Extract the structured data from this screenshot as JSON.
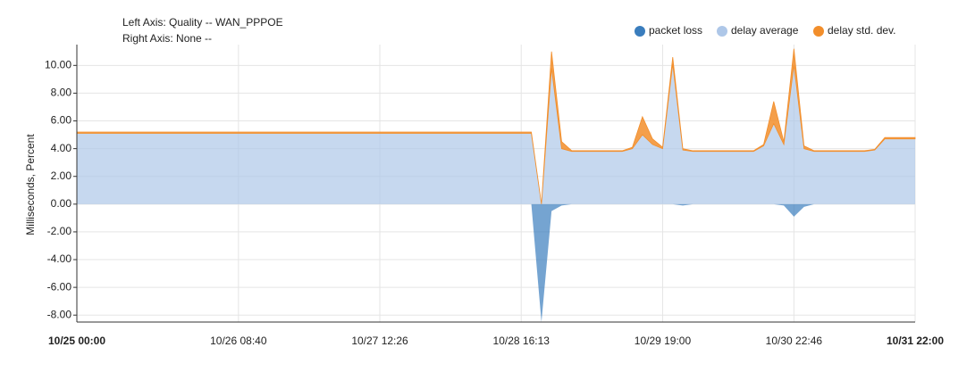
{
  "chart_data": {
    "type": "area",
    "header": [
      "Left Axis: Quality -- WAN_PPPOE",
      "Right Axis: None --"
    ],
    "ylabel": "Milliseconds, Percent",
    "categories": [
      "10/25 00:00",
      null,
      null,
      null,
      null,
      null,
      null,
      null,
      null,
      null,
      null,
      null,
      null,
      null,
      null,
      null,
      "10/26 08:40",
      null,
      null,
      null,
      null,
      null,
      null,
      null,
      null,
      null,
      null,
      null,
      null,
      null,
      "10/27 12:26",
      null,
      null,
      null,
      null,
      null,
      null,
      null,
      null,
      null,
      null,
      null,
      null,
      null,
      "10/28 16:13",
      null,
      null,
      null,
      null,
      null,
      null,
      null,
      null,
      null,
      null,
      null,
      null,
      null,
      "10/29 19:00",
      null,
      null,
      null,
      null,
      null,
      null,
      null,
      null,
      null,
      null,
      null,
      null,
      "10/30 22:46",
      null,
      null,
      null,
      null,
      null,
      null,
      null,
      null,
      null,
      null,
      null,
      "10/31 22:00"
    ],
    "series": [
      {
        "name": "packet loss",
        "color": "#3a7dbd",
        "values": [
          0,
          0,
          0,
          0,
          0,
          0,
          0,
          0,
          0,
          0,
          0,
          0,
          0,
          0,
          0,
          0,
          0,
          0,
          0,
          0,
          0,
          0,
          0,
          0,
          0,
          0,
          0,
          0,
          0,
          0,
          0,
          0,
          0,
          0,
          0,
          0,
          0,
          0,
          0,
          0,
          0,
          0,
          0,
          0,
          0,
          0,
          -8.5,
          -0.5,
          -0.1,
          0,
          0,
          0,
          0,
          0,
          0,
          0,
          0,
          0,
          0,
          0,
          -0.1,
          0,
          0,
          0,
          0,
          0,
          0,
          0,
          0,
          0,
          -0.1,
          -0.9,
          -0.2,
          0,
          0,
          0,
          0,
          0,
          0,
          0,
          0,
          0,
          0,
          0
        ]
      },
      {
        "name": "delay average",
        "color": "#aec7e8",
        "values": [
          5.1,
          5.1,
          5.1,
          5.1,
          5.1,
          5.1,
          5.1,
          5.1,
          5.1,
          5.1,
          5.1,
          5.1,
          5.1,
          5.1,
          5.1,
          5.1,
          5.1,
          5.1,
          5.1,
          5.1,
          5.1,
          5.1,
          5.1,
          5.1,
          5.1,
          5.1,
          5.1,
          5.1,
          5.1,
          5.1,
          5.1,
          5.1,
          5.1,
          5.1,
          5.1,
          5.1,
          5.1,
          5.1,
          5.1,
          5.1,
          5.1,
          5.1,
          5.1,
          5.1,
          5.1,
          5.1,
          0,
          9.8,
          4.0,
          3.8,
          3.8,
          3.8,
          3.8,
          3.8,
          3.8,
          4.0,
          5.0,
          4.3,
          4.0,
          10.1,
          3.9,
          3.8,
          3.8,
          3.8,
          3.8,
          3.8,
          3.8,
          3.8,
          4.2,
          5.8,
          4.3,
          10.0,
          4.0,
          3.8,
          3.8,
          3.8,
          3.8,
          3.8,
          3.8,
          3.9,
          4.7,
          4.7,
          4.7,
          4.7
        ]
      },
      {
        "name": "delay std. dev.",
        "color": "#f28e2b",
        "values": [
          0.1,
          0.1,
          0.1,
          0.1,
          0.1,
          0.1,
          0.1,
          0.1,
          0.1,
          0.1,
          0.1,
          0.1,
          0.1,
          0.1,
          0.1,
          0.1,
          0.1,
          0.1,
          0.1,
          0.1,
          0.1,
          0.1,
          0.1,
          0.1,
          0.1,
          0.1,
          0.1,
          0.1,
          0.1,
          0.1,
          0.1,
          0.1,
          0.1,
          0.1,
          0.1,
          0.1,
          0.1,
          0.1,
          0.1,
          0.1,
          0.1,
          0.1,
          0.1,
          0.1,
          0.1,
          0.1,
          0,
          1.2,
          0.5,
          0.05,
          0.05,
          0.05,
          0.05,
          0.05,
          0.05,
          0.1,
          1.3,
          0.4,
          0.1,
          0.5,
          0.1,
          0.05,
          0.05,
          0.05,
          0.05,
          0.05,
          0.05,
          0.05,
          0.1,
          1.6,
          0.2,
          1.2,
          0.2,
          0.05,
          0.05,
          0.05,
          0.05,
          0.05,
          0.05,
          0.05,
          0.1,
          0.1,
          0.1,
          0.1
        ]
      }
    ],
    "ylim": [
      -8.5,
      11.5
    ],
    "yticks": [
      {
        "value": 10,
        "label": "10.00"
      },
      {
        "value": 8,
        "label": "8.00"
      },
      {
        "value": 6,
        "label": "6.00"
      },
      {
        "value": 4,
        "label": "4.00"
      },
      {
        "value": 2,
        "label": "2.00"
      },
      {
        "value": 0,
        "label": "0.00"
      },
      {
        "value": -2,
        "label": "-2.00"
      },
      {
        "value": -4,
        "label": "-4.00"
      },
      {
        "value": -6,
        "label": "-6.00"
      },
      {
        "value": -8,
        "label": "-8.00"
      }
    ],
    "grid": true,
    "legend": "top-right"
  }
}
